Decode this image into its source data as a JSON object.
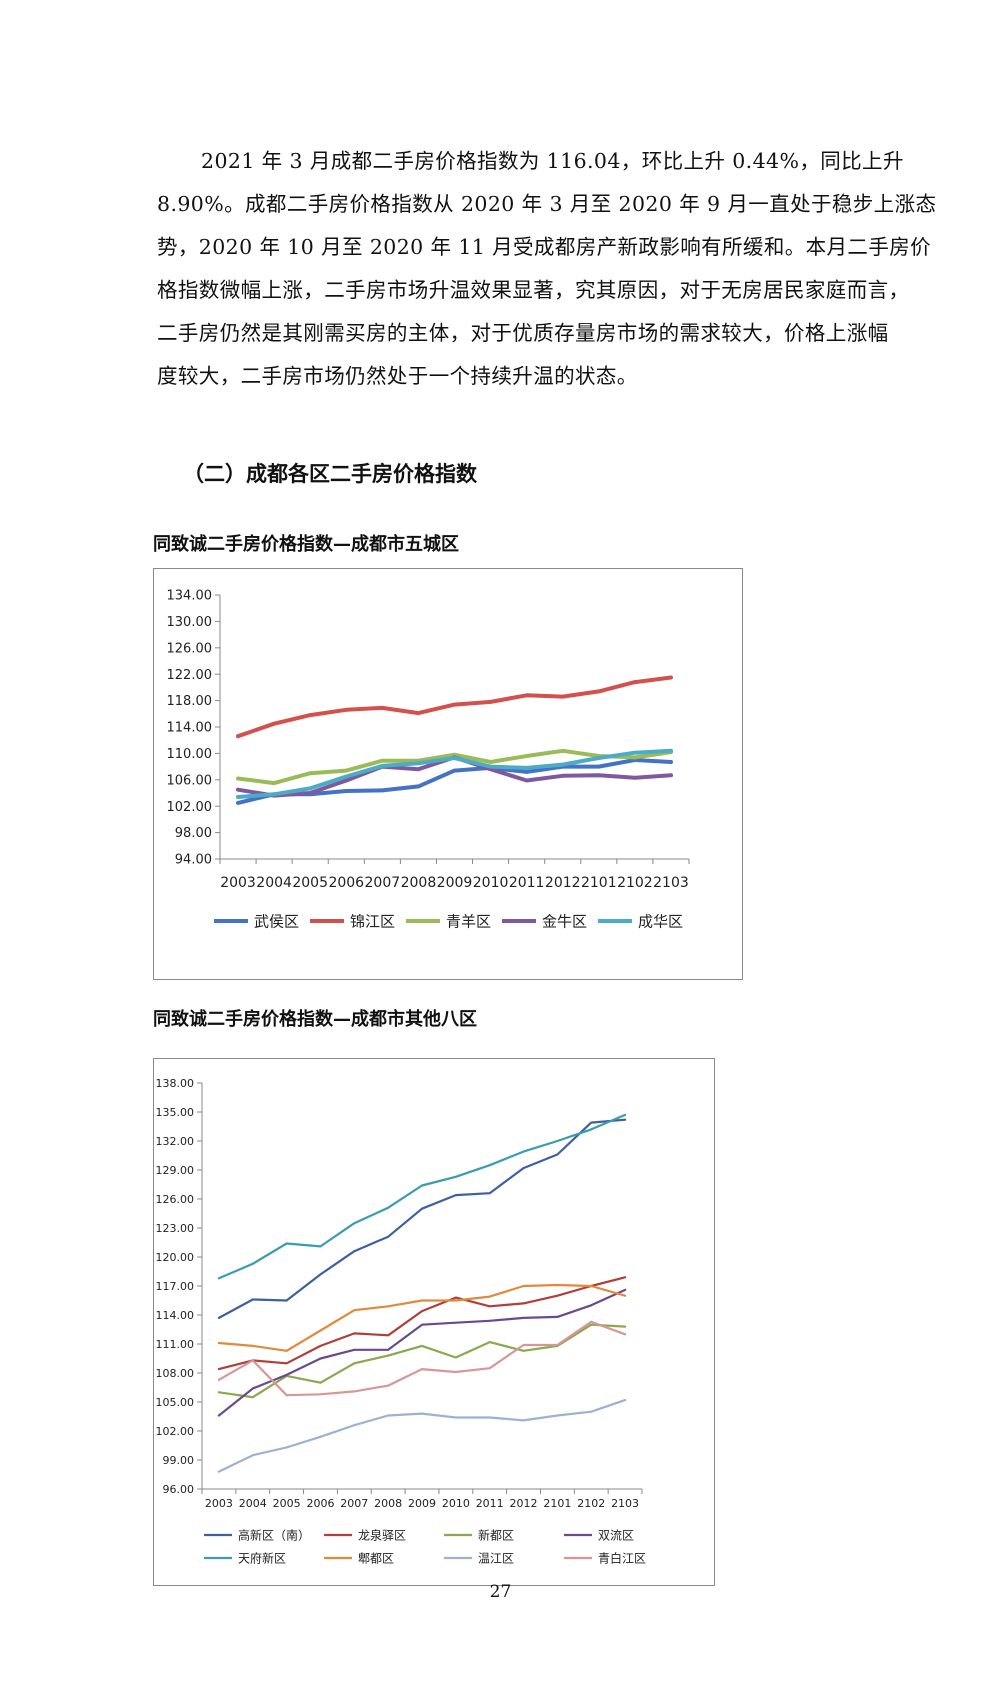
{
  "paragraph": {
    "lines": [
      "2021 年 3 月成都二手房价格指数为 116.04，环比上升 0.44%，同比上升",
      "8.90%。成都二手房价格指数从 2020 年 3 月至 2020 年 9 月一直处于稳步上涨态",
      "势，2020 年 10 月至 2020 年 11 月受成都房产新政影响有所缓和。本月二手房价",
      "格指数微幅上涨，二手房市场升温效果显著，究其原因，对于无房居民家庭而言，",
      "二手房仍然是其刚需买房的主体，对于优质存量房市场的需求较大，价格上涨幅",
      "度较大，二手房市场仍然处于一个持续升温的状态。"
    ]
  },
  "section_title": "（二）成都各区二手房价格指数",
  "chart1_title": "同致诚二手房价格指数—成都市五城区",
  "chart2_title": "同致诚二手房价格指数—成都市其他八区",
  "page_number": "27",
  "chart_data": [
    {
      "type": "line",
      "title": "同致诚二手房价格指数—成都市五城区",
      "x": [
        "2003",
        "2004",
        "2005",
        "2006",
        "2007",
        "2008",
        "2009",
        "2010",
        "2011",
        "2012",
        "2101",
        "2102",
        "2103"
      ],
      "ylim": [
        94,
        134
      ],
      "yticks": [
        "94.00",
        "98.00",
        "102.00",
        "106.00",
        "110.00",
        "114.00",
        "118.00",
        "122.00",
        "126.00",
        "130.00",
        "134.00"
      ],
      "grid": false,
      "legend_position": "bottom",
      "series": [
        {
          "name": "武侯区",
          "color": "#4472c4",
          "values": [
            102.5,
            103.8,
            103.8,
            104.3,
            104.4,
            105.0,
            107.4,
            107.8,
            107.2,
            108.0,
            108.0,
            109.0,
            108.7
          ]
        },
        {
          "name": "锦江区",
          "color": "#d4504c",
          "values": [
            112.6,
            114.5,
            115.8,
            116.6,
            116.9,
            116.1,
            117.4,
            117.8,
            118.8,
            118.6,
            119.4,
            120.8,
            121.5
          ]
        },
        {
          "name": "青羊区",
          "color": "#9bbb59",
          "values": [
            106.2,
            105.5,
            107.0,
            107.4,
            108.9,
            108.9,
            109.8,
            108.7,
            109.6,
            110.4,
            109.6,
            109.4,
            110.2
          ]
        },
        {
          "name": "金牛区",
          "color": "#7f59a0",
          "values": [
            104.5,
            103.6,
            104.0,
            105.9,
            108.0,
            107.6,
            109.4,
            107.6,
            105.9,
            106.6,
            106.7,
            106.3,
            106.7
          ]
        },
        {
          "name": "成华区",
          "color": "#4bacc6",
          "values": [
            103.4,
            103.8,
            104.7,
            106.5,
            108.1,
            108.5,
            109.3,
            108.0,
            107.8,
            108.3,
            109.3,
            110.1,
            110.4
          ]
        }
      ]
    },
    {
      "type": "line",
      "title": "同致诚二手房价格指数—成都市其他八区",
      "x": [
        "2003",
        "2004",
        "2005",
        "2006",
        "2007",
        "2008",
        "2009",
        "2010",
        "2011",
        "2012",
        "2101",
        "2102",
        "2103"
      ],
      "ylim": [
        96,
        138
      ],
      "yticks": [
        "96.00",
        "99.00",
        "102.00",
        "105.00",
        "108.00",
        "111.00",
        "114.00",
        "117.00",
        "120.00",
        "123.00",
        "126.00",
        "129.00",
        "132.00",
        "135.00",
        "138.00"
      ],
      "grid": false,
      "legend_position": "bottom",
      "series": [
        {
          "name": "高新区（南）",
          "color": "#3d5fa3",
          "values": [
            113.7,
            115.6,
            115.5,
            118.2,
            120.6,
            122.1,
            125.0,
            126.4,
            126.6,
            129.2,
            130.6,
            133.9,
            134.2
          ]
        },
        {
          "name": "龙泉驿区",
          "color": "#b03e3a",
          "values": [
            108.4,
            109.3,
            109.0,
            110.8,
            112.1,
            111.9,
            114.4,
            115.8,
            114.9,
            115.2,
            116.0,
            117.0,
            117.9
          ]
        },
        {
          "name": "新都区",
          "color": "#8aa94e",
          "values": [
            106.0,
            105.5,
            107.7,
            107.0,
            109.0,
            109.8,
            110.8,
            109.6,
            111.2,
            110.3,
            110.8,
            113.0,
            112.8
          ]
        },
        {
          "name": "双流区",
          "color": "#6a4a8c",
          "values": [
            103.6,
            106.4,
            107.8,
            109.5,
            110.4,
            110.4,
            113.0,
            113.2,
            113.4,
            113.7,
            113.8,
            115.0,
            116.6
          ]
        },
        {
          "name": "天府新区",
          "color": "#3a9bb3",
          "values": [
            117.8,
            119.3,
            121.4,
            121.1,
            123.5,
            125.1,
            127.4,
            128.3,
            129.5,
            130.9,
            132.0,
            133.2,
            134.7
          ]
        },
        {
          "name": "郫都区",
          "color": "#e08a3c",
          "values": [
            111.1,
            110.8,
            110.3,
            112.4,
            114.5,
            114.9,
            115.5,
            115.5,
            115.9,
            117.0,
            117.1,
            117.0,
            116.0
          ]
        },
        {
          "name": "温江区",
          "color": "#9fb1d3",
          "values": [
            97.8,
            99.5,
            100.3,
            101.4,
            102.6,
            103.6,
            103.8,
            103.4,
            103.4,
            103.1,
            103.6,
            104.0,
            105.2
          ]
        },
        {
          "name": "青白江区",
          "color": "#d9969a",
          "values": [
            107.3,
            109.3,
            105.7,
            105.8,
            106.1,
            106.7,
            108.4,
            108.1,
            108.5,
            110.9,
            110.9,
            113.3,
            112.0
          ]
        }
      ]
    }
  ]
}
